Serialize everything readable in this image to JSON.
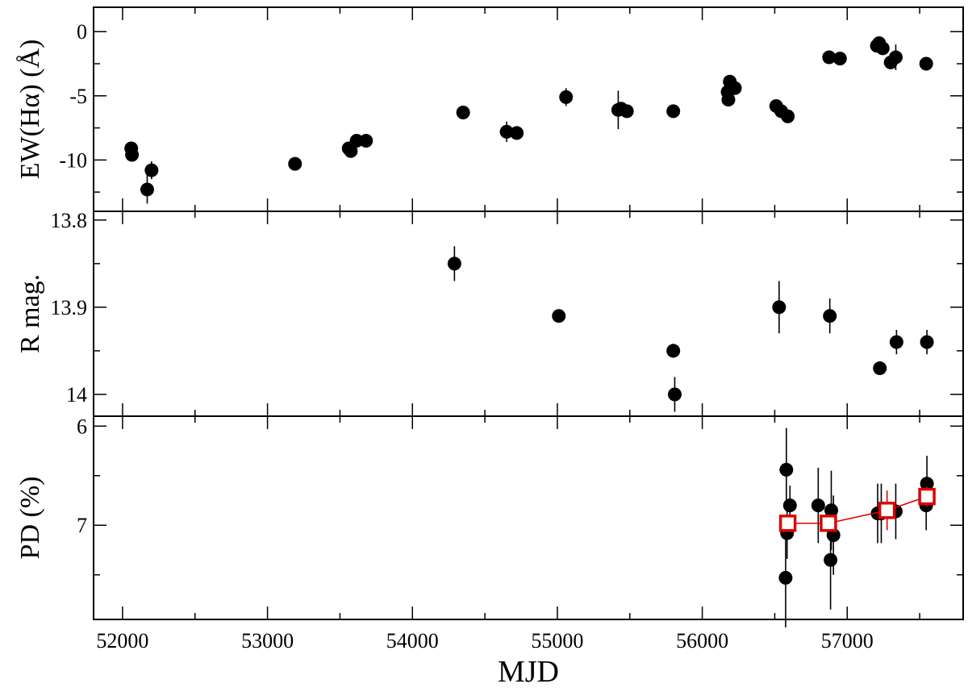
{
  "chart_data": {
    "type": "scatter",
    "colors": {
      "points": "#000000",
      "binned": "#e00000",
      "binned_fill": "#ffffff"
    },
    "x": {
      "label": "MJD",
      "lim": [
        51800,
        57800
      ],
      "major_ticks": [
        52000,
        53000,
        54000,
        55000,
        56000,
        57000
      ],
      "minor_step": 500
    },
    "panels": [
      {
        "id": "ew",
        "ylabel": "EW(Hα) (Å)",
        "ylim": [
          1.9,
          -14.0
        ],
        "major_ticks": [
          -10,
          -5,
          0
        ],
        "tick_labels": [
          "-10",
          "-5",
          "0"
        ],
        "minor_ticks": [
          -12.5,
          -7.5,
          -2.5
        ],
        "series": [
          {
            "style": "filled-circle",
            "points": [
              {
                "x": 52060,
                "y": -9.1,
                "err": 0.3
              },
              {
                "x": 52065,
                "y": -9.6,
                "err": 0.3
              },
              {
                "x": 52170,
                "y": -12.3,
                "err": 1.1
              },
              {
                "x": 52200,
                "y": -10.8,
                "err": 0.7
              },
              {
                "x": 53190,
                "y": -10.3,
                "err": 0.4
              },
              {
                "x": 53560,
                "y": -9.1,
                "err": 0.3
              },
              {
                "x": 53575,
                "y": -9.3,
                "err": 0.3
              },
              {
                "x": 53615,
                "y": -8.5,
                "err": 0.3
              },
              {
                "x": 53680,
                "y": -8.5,
                "err": 0.3
              },
              {
                "x": 54350,
                "y": -6.3,
                "err": 0.3
              },
              {
                "x": 54650,
                "y": -7.8,
                "err": 0.8
              },
              {
                "x": 54720,
                "y": -7.9,
                "err": 0.3
              },
              {
                "x": 55060,
                "y": -5.1,
                "err": 0.7
              },
              {
                "x": 55420,
                "y": -6.1,
                "err": 1.5
              },
              {
                "x": 55440,
                "y": -6.0,
                "err": 0.3
              },
              {
                "x": 55480,
                "y": -6.2,
                "err": 0.3
              },
              {
                "x": 55800,
                "y": -6.2,
                "err": 0.3
              },
              {
                "x": 56175,
                "y": -4.7,
                "err": 0.3
              },
              {
                "x": 56180,
                "y": -5.3,
                "err": 0.5
              },
              {
                "x": 56190,
                "y": -3.9,
                "err": 0.4
              },
              {
                "x": 56225,
                "y": -4.4,
                "err": 0.3
              },
              {
                "x": 56510,
                "y": -5.8,
                "err": 0.3
              },
              {
                "x": 56545,
                "y": -6.2,
                "err": 0.3
              },
              {
                "x": 56590,
                "y": -6.6,
                "err": 0.3
              },
              {
                "x": 56875,
                "y": -2.0,
                "err": 0.3
              },
              {
                "x": 56950,
                "y": -2.1,
                "err": 0.3
              },
              {
                "x": 57205,
                "y": -1.1,
                "err": 0.3
              },
              {
                "x": 57220,
                "y": -0.9,
                "err": 0.3
              },
              {
                "x": 57245,
                "y": -1.3,
                "err": 0.3
              },
              {
                "x": 57300,
                "y": -2.4,
                "err": 0.3
              },
              {
                "x": 57335,
                "y": -2.0,
                "err": 1.0
              },
              {
                "x": 57545,
                "y": -2.5,
                "err": 0.3
              }
            ]
          }
        ]
      },
      {
        "id": "rmag",
        "ylabel": "R mag.",
        "ylim": [
          13.79,
          14.025
        ],
        "major_ticks": [
          13.8,
          13.9,
          14.0
        ],
        "tick_labels": [
          "13.8",
          "13.9",
          "14"
        ],
        "minor_ticks": [
          13.85,
          13.95
        ],
        "series": [
          {
            "style": "filled-circle",
            "points": [
              {
                "x": 54290,
                "y": 13.85,
                "err": 0.02
              },
              {
                "x": 55010,
                "y": 13.91,
                "err": 0.007
              },
              {
                "x": 55800,
                "y": 13.95,
                "err": 0.008
              },
              {
                "x": 55810,
                "y": 14.0,
                "err": 0.02
              },
              {
                "x": 56530,
                "y": 13.9,
                "err": 0.03
              },
              {
                "x": 56880,
                "y": 13.91,
                "err": 0.02
              },
              {
                "x": 57225,
                "y": 13.97,
                "err": 0.005
              },
              {
                "x": 57340,
                "y": 13.94,
                "err": 0.014
              },
              {
                "x": 57550,
                "y": 13.94,
                "err": 0.014
              }
            ]
          }
        ]
      },
      {
        "id": "pd",
        "ylabel": "PD (%)",
        "ylim": [
          5.9,
          7.95
        ],
        "major_ticks": [
          6,
          7
        ],
        "tick_labels": [
          "6",
          "7"
        ],
        "minor_ticks": [
          6.5,
          7.5
        ],
        "series": [
          {
            "style": "filled-circle",
            "points": [
              {
                "x": 56575,
                "y": 7.53,
                "err": 0.5
              },
              {
                "x": 56585,
                "y": 7.08,
                "err": 0.26
              },
              {
                "x": 56580,
                "y": 6.44,
                "err": 0.42
              },
              {
                "x": 56605,
                "y": 6.8,
                "err": 0.2
              },
              {
                "x": 56800,
                "y": 6.8,
                "err": 0.38
              },
              {
                "x": 56885,
                "y": 7.35,
                "err": 0.5
              },
              {
                "x": 56890,
                "y": 6.85,
                "err": 0.4
              },
              {
                "x": 56905,
                "y": 7.1,
                "err": 0.4
              },
              {
                "x": 57210,
                "y": 6.88,
                "err": 0.3
              },
              {
                "x": 57235,
                "y": 6.88,
                "err": 0.3
              },
              {
                "x": 57335,
                "y": 6.86,
                "err": 0.28
              },
              {
                "x": 57545,
                "y": 6.8,
                "err": 0.25
              },
              {
                "x": 57550,
                "y": 6.58,
                "err": 0.28
              }
            ]
          },
          {
            "style": "open-square",
            "connected": true,
            "points": [
              {
                "x": 56590,
                "y": 6.98,
                "err": 0.06
              },
              {
                "x": 56870,
                "y": 6.98,
                "err": 0.06
              },
              {
                "x": 57275,
                "y": 6.85,
                "err": 0.2
              },
              {
                "x": 57550,
                "y": 6.71,
                "err": 0.1
              }
            ]
          }
        ]
      }
    ]
  }
}
